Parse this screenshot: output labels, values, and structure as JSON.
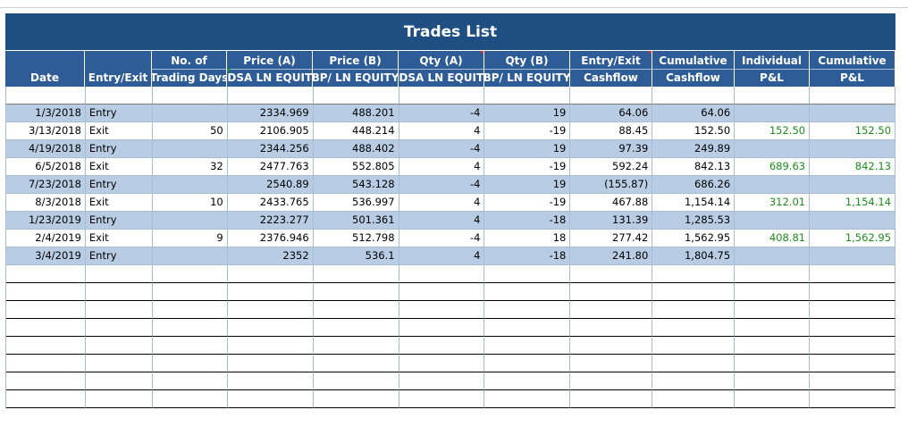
{
  "title": "Trades List",
  "headers": [
    {
      "l1": "",
      "l2": "Date"
    },
    {
      "l1": "",
      "l2": "Entry/Exit"
    },
    {
      "l1": "No. of",
      "l2": "Trading Days"
    },
    {
      "l1": "Price (A)",
      "l2": "RDSA LN EQUITY"
    },
    {
      "l1": "Price (B)",
      "l2": "BP/ LN EQUITY"
    },
    {
      "l1": "Qty (A)",
      "l2": "RDSA LN EQUITY"
    },
    {
      "l1": "Qty (B)",
      "l2": "BP/ LN EQUITY"
    },
    {
      "l1": "Entry/Exit",
      "l2": "Cashflow"
    },
    {
      "l1": "Cumulative",
      "l2": "Cashflow"
    },
    {
      "l1": "Individual",
      "l2": "P&L"
    },
    {
      "l1": "Cumulative",
      "l2": "P&L"
    }
  ],
  "rows": [
    {
      "date": "1/3/2018",
      "type": "Entry",
      "days": "",
      "pa": "2334.969",
      "pb": "488.201",
      "qa": "-4",
      "qb": "19",
      "cf": "64.06",
      "ccf": "64.06",
      "ipl": "",
      "cpl": ""
    },
    {
      "date": "3/13/2018",
      "type": "Exit",
      "days": "50",
      "pa": "2106.905",
      "pb": "448.214",
      "qa": "4",
      "qb": "-19",
      "cf": "88.45",
      "ccf": "152.50",
      "ipl": "152.50",
      "cpl": "152.50"
    },
    {
      "date": "4/19/2018",
      "type": "Entry",
      "days": "",
      "pa": "2344.256",
      "pb": "488.402",
      "qa": "-4",
      "qb": "19",
      "cf": "97.39",
      "ccf": "249.89",
      "ipl": "",
      "cpl": ""
    },
    {
      "date": "6/5/2018",
      "type": "Exit",
      "days": "32",
      "pa": "2477.763",
      "pb": "552.805",
      "qa": "4",
      "qb": "-19",
      "cf": "592.24",
      "ccf": "842.13",
      "ipl": "689.63",
      "cpl": "842.13"
    },
    {
      "date": "7/23/2018",
      "type": "Entry",
      "days": "",
      "pa": "2540.89",
      "pb": "543.128",
      "qa": "-4",
      "qb": "19",
      "cf": "(155.87)",
      "ccf": "686.26",
      "ipl": "",
      "cpl": ""
    },
    {
      "date": "8/3/2018",
      "type": "Exit",
      "days": "10",
      "pa": "2433.765",
      "pb": "536.997",
      "qa": "4",
      "qb": "-19",
      "cf": "467.88",
      "ccf": "1,154.14",
      "ipl": "312.01",
      "cpl": "1,154.14"
    },
    {
      "date": "1/23/2019",
      "type": "Entry",
      "days": "",
      "pa": "2223.277",
      "pb": "501.361",
      "qa": "4",
      "qb": "-18",
      "cf": "131.39",
      "ccf": "1,285.53",
      "ipl": "",
      "cpl": ""
    },
    {
      "date": "2/4/2019",
      "type": "Exit",
      "days": "9",
      "pa": "2376.946",
      "pb": "512.798",
      "qa": "-4",
      "qb": "18",
      "cf": "277.42",
      "ccf": "1,562.95",
      "ipl": "408.81",
      "cpl": "1,562.95"
    },
    {
      "date": "3/4/2019",
      "type": "Entry",
      "days": "",
      "pa": "2352",
      "pb": "536.1",
      "qa": "4",
      "qb": "-18",
      "cf": "241.80",
      "ccf": "1,804.75",
      "ipl": "",
      "cpl": ""
    }
  ],
  "colors": {
    "title_bg": "#1f4e82",
    "header_bg": "#2e5c96",
    "band": "#b8cce4",
    "pnl_green": "#1e8c1e"
  }
}
